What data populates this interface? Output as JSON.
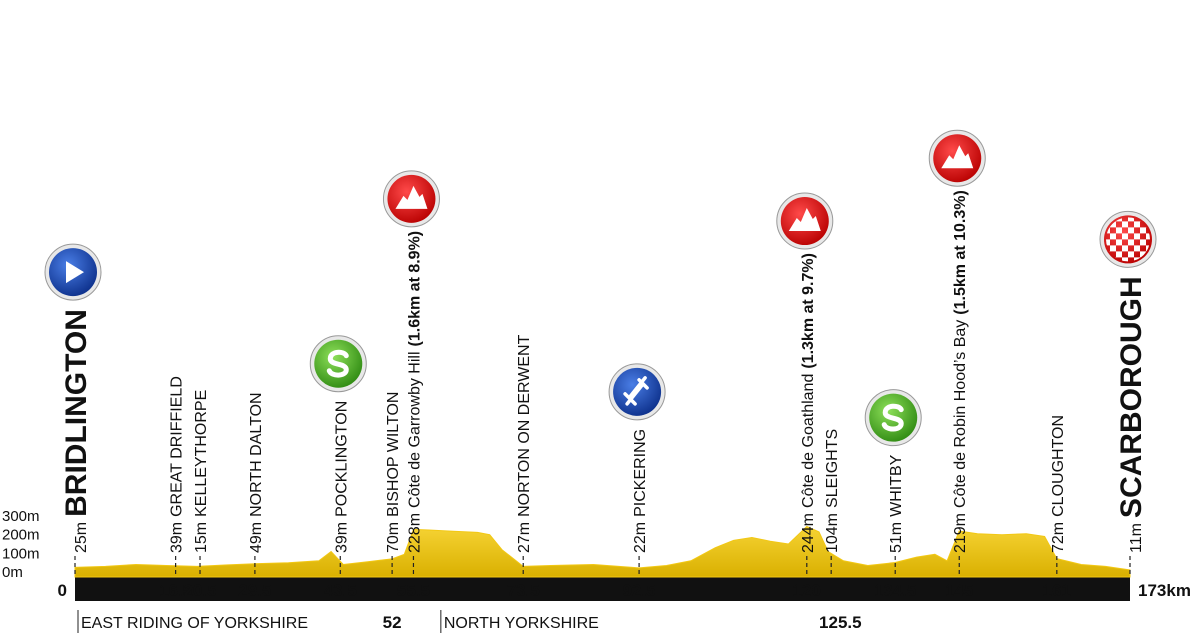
{
  "chart_data": {
    "type": "profile",
    "xlim": [
      0,
      173
    ],
    "ylim": [
      0,
      300
    ],
    "yticks": [
      {
        "value": 300,
        "label": "300m"
      },
      {
        "value": 200,
        "label": "200m"
      },
      {
        "value": 100,
        "label": "100m"
      },
      {
        "value": 0,
        "label": "0m"
      }
    ],
    "xticks": [
      0,
      16.5,
      20.5,
      29.5,
      43.5,
      55.5,
      73.5,
      92.5,
      120,
      134.5,
      145,
      161,
      {
        "value": 173,
        "label": "173km"
      }
    ],
    "color": "#f2c814",
    "x": [
      0,
      5,
      10,
      15,
      20,
      25,
      30,
      35,
      40,
      42,
      44,
      48,
      52,
      54,
      55.5,
      58,
      62,
      66,
      68,
      70,
      73.5,
      78,
      85,
      92.5,
      97,
      101,
      105,
      108,
      111,
      114,
      117,
      120,
      122,
      123.5,
      126,
      130,
      134.5,
      138,
      141,
      143,
      145,
      148,
      152,
      156,
      159,
      161,
      165,
      169,
      173
    ],
    "values": [
      25,
      30,
      40,
      35,
      30,
      38,
      45,
      50,
      60,
      110,
      40,
      55,
      70,
      95,
      228,
      225,
      218,
      212,
      200,
      120,
      30,
      35,
      40,
      22,
      35,
      60,
      130,
      170,
      185,
      165,
      150,
      244,
      215,
      110,
      60,
      35,
      51,
      80,
      95,
      60,
      219,
      205,
      200,
      205,
      190,
      72,
      40,
      30,
      11
    ],
    "waypoints": [
      {
        "x": 0,
        "elevation": {
          "value": 25,
          "label": "25m"
        },
        "name": "BRIDLINGTON",
        "icon": "start",
        "major": true
      },
      {
        "x": 16.5,
        "elevation": {
          "value": 39,
          "label": "39m"
        },
        "name": "GREAT DRIFFIELD"
      },
      {
        "x": 20.5,
        "elevation": {
          "value": 15,
          "label": "15m"
        },
        "name": "KELLEYTHORPE"
      },
      {
        "x": 29.5,
        "elevation": {
          "value": 49,
          "label": "49m"
        },
        "name": "NORTH DALTON"
      },
      {
        "x": 43.5,
        "elevation": {
          "value": 39,
          "label": "39m"
        },
        "name": "POCKLINGTON",
        "icon": "sprint"
      },
      {
        "x": 52,
        "elevation": {
          "value": 70,
          "label": "70m"
        },
        "name": "BISHOP WILTON"
      },
      {
        "x": 55.5,
        "elevation": {
          "value": 228,
          "label": "228m"
        },
        "name": "Côte de Garrowby Hill",
        "detail": "(1.6km at 8.9%)",
        "icon": "climb"
      },
      {
        "x": 73.5,
        "elevation": {
          "value": 27,
          "label": "27m"
        },
        "name": "NORTON ON DERWENT"
      },
      {
        "x": 92.5,
        "elevation": {
          "value": 22,
          "label": "22m"
        },
        "name": "PICKERING",
        "icon": "feed"
      },
      {
        "x": 120,
        "elevation": {
          "value": 244,
          "label": "244m"
        },
        "name": "Côte de Goathland",
        "detail": "(1.3km at 9.7%)",
        "icon": "climb"
      },
      {
        "x": 124,
        "elevation": {
          "value": 104,
          "label": "104m"
        },
        "name": "SLEIGHTS"
      },
      {
        "x": 134.5,
        "elevation": {
          "value": 51,
          "label": "51m"
        },
        "name": "WHITBY",
        "icon": "sprint"
      },
      {
        "x": 145,
        "elevation": {
          "value": 219,
          "label": "219m"
        },
        "name": "Côte de Robin Hood’s Bay",
        "detail": "(1.5km at 10.3%)",
        "icon": "climb"
      },
      {
        "x": 161,
        "elevation": {
          "value": 72,
          "label": "72m"
        },
        "name": "CLOUGHTON"
      },
      {
        "x": 173,
        "elevation": {
          "value": 11,
          "label": "11m"
        },
        "name": "SCARBOROUGH",
        "icon": "finish",
        "major": true
      }
    ],
    "regions": [
      {
        "x": 0,
        "label": "EAST RIDING OF YORKSHIRE"
      },
      {
        "x": 59.5,
        "label": "NORTH YORKSHIRE"
      }
    ],
    "markers": [
      52,
      125.5
    ]
  }
}
